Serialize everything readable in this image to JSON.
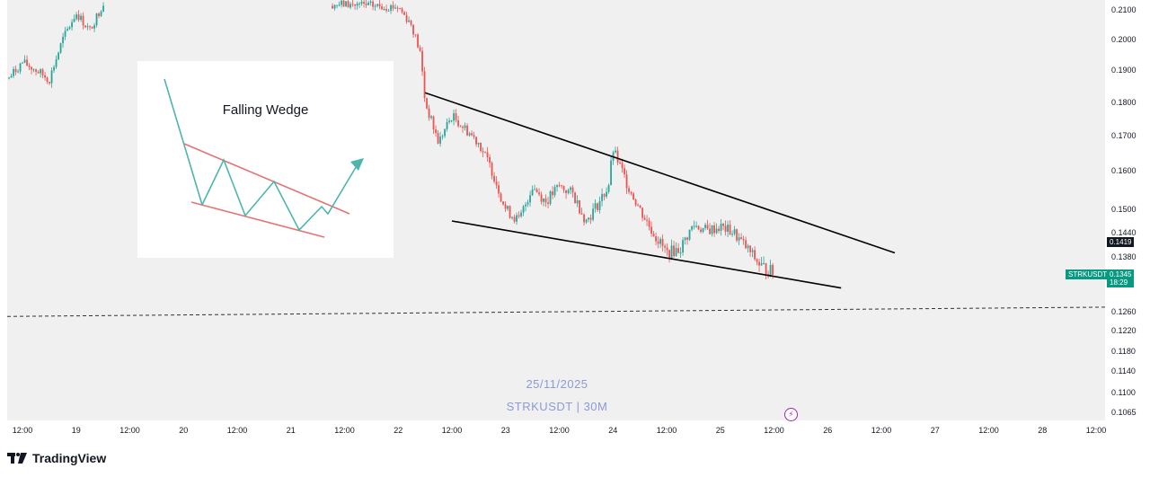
{
  "chart_data": {
    "type": "candlestick",
    "symbol": "STRKUSDT",
    "interval": "30M",
    "watermark_date": "25/11/2025",
    "watermark_symbol": "STRKUSDT | 30M",
    "y_ticks": [
      "0.2100",
      "0.2000",
      "0.1900",
      "0.1800",
      "0.1700",
      "0.1600",
      "0.1500",
      "0.1440",
      "0.1380",
      "0.1260",
      "0.1220",
      "0.1180",
      "0.1140",
      "0.1100",
      "0.1065"
    ],
    "x_ticks": [
      "12:00",
      "19",
      "12:00",
      "20",
      "12:00",
      "21",
      "12:00",
      "22",
      "12:00",
      "23",
      "12:00",
      "24",
      "12:00",
      "25",
      "12:00",
      "26",
      "12:00",
      "27",
      "12:00",
      "28",
      "12:00"
    ],
    "marked_price": {
      "label": "0.1419",
      "value": 0.1419,
      "color": "#131722"
    },
    "last_price": {
      "symbol": "STRKUSDT",
      "value": "0.1345",
      "countdown": "18:29",
      "color": "#089981"
    },
    "close_path": [
      {
        "x": "18 09:00",
        "y": 0.1875
      },
      {
        "x": "18 12:00",
        "y": 0.1925
      },
      {
        "x": "18 15:00",
        "y": 0.19
      },
      {
        "x": "18 18:00",
        "y": 0.187
      },
      {
        "x": "18 21:00",
        "y": 0.2
      },
      {
        "x": "19 00:00",
        "y": 0.209
      },
      {
        "x": "19 03:00",
        "y": 0.203
      },
      {
        "x": "19 06:00",
        "y": 0.212
      },
      {
        "x": "21 09:00",
        "y": 0.212
      },
      {
        "x": "22 00:00",
        "y": 0.211
      },
      {
        "x": "22 03:00",
        "y": 0.205
      },
      {
        "x": "22 05:00",
        "y": 0.195
      },
      {
        "x": "22 06:00",
        "y": 0.18
      },
      {
        "x": "22 09:00",
        "y": 0.168
      },
      {
        "x": "22 12:00",
        "y": 0.176
      },
      {
        "x": "22 15:00",
        "y": 0.172
      },
      {
        "x": "22 18:00",
        "y": 0.168
      },
      {
        "x": "22 21:00",
        "y": 0.16
      },
      {
        "x": "23 00:00",
        "y": 0.15
      },
      {
        "x": "23 03:00",
        "y": 0.147
      },
      {
        "x": "23 06:00",
        "y": 0.156
      },
      {
        "x": "23 09:00",
        "y": 0.152
      },
      {
        "x": "23 12:00",
        "y": 0.156
      },
      {
        "x": "23 15:00",
        "y": 0.154
      },
      {
        "x": "23 18:00",
        "y": 0.147
      },
      {
        "x": "23 21:00",
        "y": 0.152
      },
      {
        "x": "23 23:00",
        "y": 0.156
      },
      {
        "x": "24 00:00",
        "y": 0.166
      },
      {
        "x": "24 03:00",
        "y": 0.157
      },
      {
        "x": "24 06:00",
        "y": 0.15
      },
      {
        "x": "24 09:00",
        "y": 0.144
      },
      {
        "x": "24 12:00",
        "y": 0.139
      },
      {
        "x": "24 15:00",
        "y": 0.14
      },
      {
        "x": "24 18:00",
        "y": 0.146
      },
      {
        "x": "24 21:00",
        "y": 0.1445
      },
      {
        "x": "25 00:00",
        "y": 0.1455
      },
      {
        "x": "25 03:00",
        "y": 0.144
      },
      {
        "x": "25 06:00",
        "y": 0.14
      },
      {
        "x": "25 09:00",
        "y": 0.136
      },
      {
        "x": "25 12:00",
        "y": 0.1345
      }
    ],
    "trendlines": {
      "upper": {
        "from": {
          "x": "22 06:00",
          "y": 0.183
        },
        "to": {
          "x": "26 15:00",
          "y": 0.139
        }
      },
      "lower": {
        "from": {
          "x": "22 12:00",
          "y": 0.147
        },
        "to": {
          "x": "26 03:00",
          "y": 0.1312
        }
      },
      "horizontal_dashed": {
        "from": {
          "x": "18 09:00",
          "y": 0.125
        },
        "to": {
          "x": "28 12:00",
          "y": 0.127
        }
      }
    },
    "inset": {
      "title": "Falling Wedge"
    }
  },
  "branding": {
    "logo_text": "TradingView"
  },
  "colors": {
    "up": "#26a69a",
    "down": "#ef5350",
    "wedge_red": "#e57373",
    "arrow": "#4db6ac"
  }
}
